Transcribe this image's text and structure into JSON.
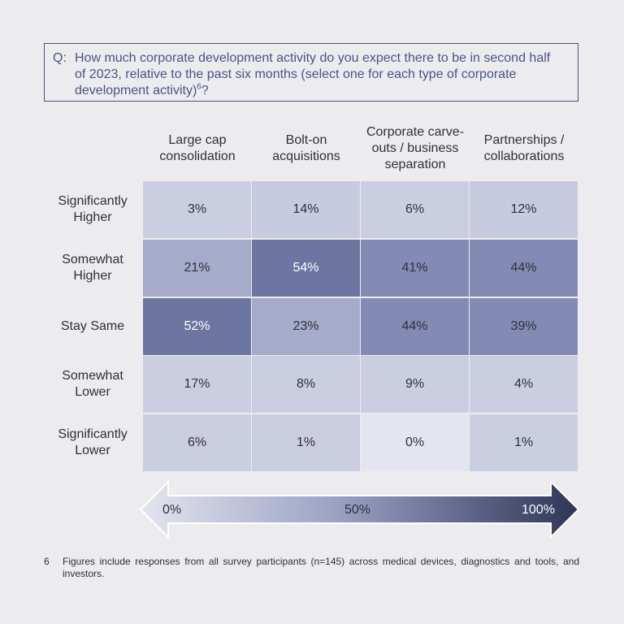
{
  "question": {
    "label": "Q:",
    "text": "How much corporate development activity do you expect there to be in second half of 2023, relative to the past six months (select one for each type of corporate development activity)",
    "footnote_ref": "6",
    "end": "?"
  },
  "chart_data": {
    "type": "heatmap",
    "columns": [
      "Large cap consolidation",
      "Bolt-on acquisitions",
      "Corporate carve-outs / business separation",
      "Partnerships / collaborations"
    ],
    "rows": [
      "Significantly Higher",
      "Somewhat Higher",
      "Stay Same",
      "Somewhat Lower",
      "Significantly Lower"
    ],
    "values": [
      [
        3,
        14,
        6,
        12
      ],
      [
        21,
        54,
        41,
        44
      ],
      [
        52,
        23,
        44,
        39
      ],
      [
        17,
        8,
        9,
        4
      ],
      [
        6,
        1,
        0,
        1
      ]
    ],
    "value_suffix": "%",
    "scale": {
      "min_label": "0%",
      "mid_label": "50%",
      "max_label": "100%",
      "min_color": "#e4e5ee",
      "max_color": "#2f3557"
    }
  },
  "cell_colors": [
    [
      "#cbcee1",
      "#c8cbdf",
      "#cbcee1",
      "#c8cbdf"
    ],
    [
      "#a5abc8",
      "#6d76a0",
      "#838bb5",
      "#838bb5"
    ],
    [
      "#6d76a0",
      "#a5abc8",
      "#838bb5",
      "#838bb5"
    ],
    [
      "#cbcee1",
      "#cbcee1",
      "#cbcee1",
      "#cbcee1"
    ],
    [
      "#cbcee1",
      "#cbcee1",
      "#e4e5ee",
      "#cbcee1"
    ]
  ],
  "footnote": {
    "number": "6",
    "text": "Figures include responses from all survey participants (n=145) across medical devices, diagnostics and tools, and investors."
  }
}
